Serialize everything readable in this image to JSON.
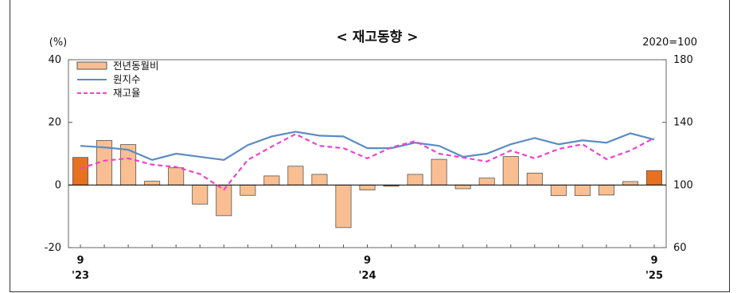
{
  "chart_data": {
    "type": "bar",
    "title": "< 재고동향 >",
    "left_unit": "(%)",
    "right_unit": "2020=100",
    "y_left": {
      "min": -20,
      "max": 40,
      "ticks": [
        40,
        20,
        0,
        -20
      ]
    },
    "y_right": {
      "min": 60,
      "max": 180,
      "ticks": [
        180,
        140,
        100,
        60
      ]
    },
    "x_labels": [
      {
        "index": 0,
        "month": "9",
        "year": "'23"
      },
      {
        "index": 12,
        "month": "9",
        "year": "'24"
      },
      {
        "index": 24,
        "month": "9",
        "year": "'25"
      }
    ],
    "legend": {
      "placement": "top-left",
      "entries": [
        "전년동월비",
        "원지수",
        "재고율"
      ]
    },
    "colors": {
      "bar": "#f9bf92",
      "bar_highlight": "#e8711f",
      "bar_border": "#555555",
      "line_index": "#5b8cc4",
      "line_ratio": "#ee44cc"
    },
    "series": [
      {
        "name": "전년동월비",
        "axis": "left",
        "kind": "bar",
        "highlight": [
          0,
          13,
          24
        ],
        "values": [
          8.8,
          14.2,
          12.9,
          1.2,
          5.5,
          -6.1,
          -9.8,
          -3.3,
          2.9,
          6.0,
          3.4,
          -13.6,
          -1.6,
          -0.4,
          3.4,
          8.2,
          -1.2,
          2.2,
          9.1,
          3.8,
          -3.4,
          -3.4,
          -3.2,
          1.1,
          4.6
        ]
      },
      {
        "name": "원지수",
        "axis": "right",
        "kind": "line",
        "values": [
          125.0,
          124.0,
          122.5,
          116.0,
          120.0,
          118.0,
          116.0,
          125.5,
          131.0,
          134.0,
          131.5,
          131.0,
          123.5,
          123.5,
          127.0,
          125.0,
          118.0,
          120.0,
          126.0,
          130.0,
          126.0,
          128.5,
          127.0,
          133.0,
          129.0
        ]
      },
      {
        "name": "재고율",
        "axis": "right",
        "kind": "dashed-line",
        "values": [
          110.5,
          115.5,
          117.0,
          113.0,
          111.5,
          107.0,
          97.0,
          116.0,
          124.5,
          132.5,
          125.0,
          123.5,
          117.0,
          124.0,
          128.0,
          120.0,
          117.5,
          115.0,
          122.0,
          117.0,
          123.0,
          126.0,
          116.5,
          122.0,
          130.0
        ]
      }
    ]
  }
}
